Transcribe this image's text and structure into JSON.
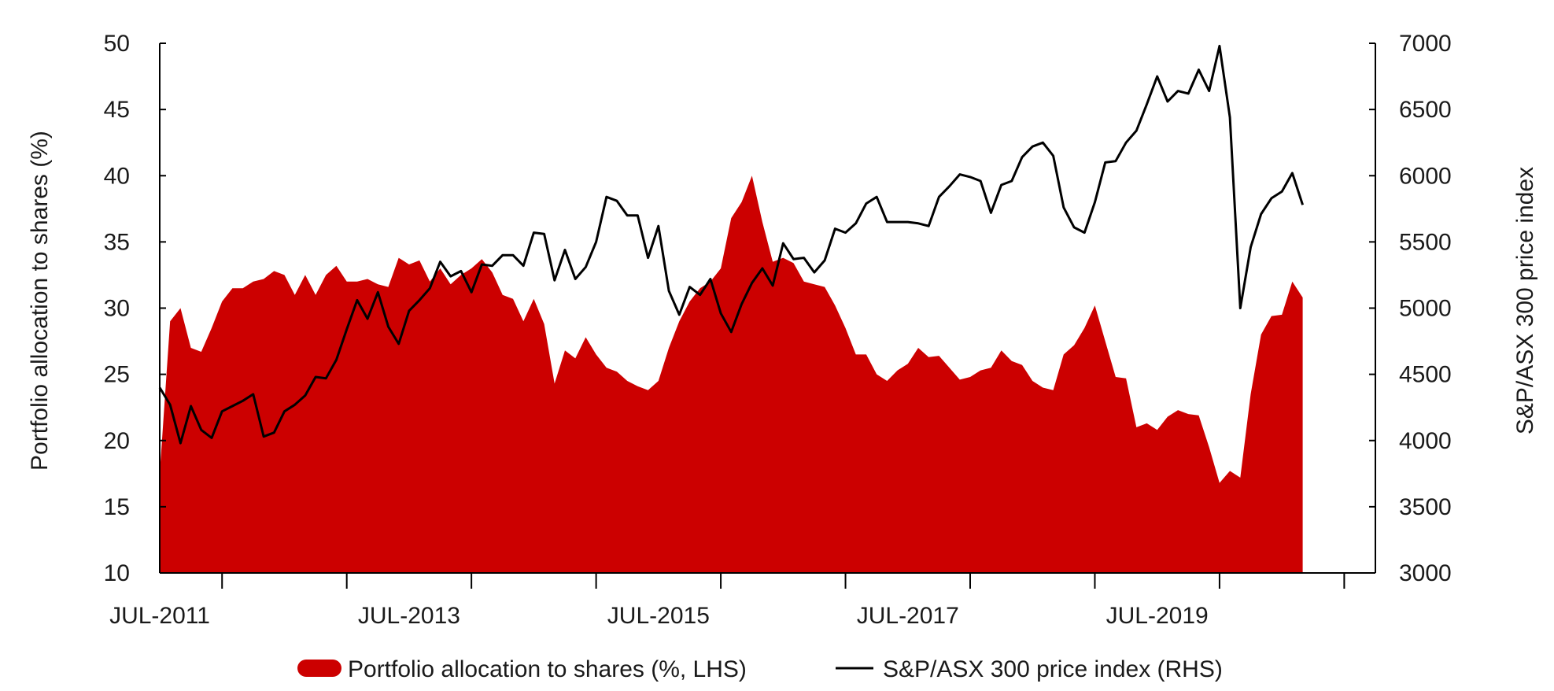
{
  "chart_data": {
    "type": "area+line",
    "title": "",
    "left_axis": {
      "label": "Portfolio allocation to shares (%)",
      "min": 10,
      "max": 50,
      "ticks": [
        "10",
        "15",
        "20",
        "25",
        "30",
        "35",
        "40",
        "45",
        "50"
      ]
    },
    "right_axis": {
      "label": "S&P/ASX 300 price index",
      "min": 3000,
      "max": 7000,
      "ticks": [
        "3000",
        "3500",
        "4000",
        "4500",
        "5000",
        "5500",
        "6000",
        "6500",
        "7000"
      ]
    },
    "x_axis": {
      "start": "2011-07",
      "end": "2021-04",
      "tick_labels": [
        "JUL-2011",
        "JUL-2013",
        "JUL-2015",
        "JUL-2017",
        "JUL-2019"
      ]
    },
    "legend": {
      "placement": "bottom-center"
    },
    "colors": {
      "allocation": "#cc0000",
      "index": "#000000"
    },
    "series": [
      {
        "name": "Portfolio allocation to shares (%, LHS)",
        "axis": "left",
        "style": "area",
        "points": [
          [
            "2011-07",
            17.5
          ],
          [
            "2011-08",
            29.0
          ],
          [
            "2011-09",
            30.0
          ],
          [
            "2011-10",
            27.0
          ],
          [
            "2011-11",
            26.7
          ],
          [
            "2011-12",
            28.5
          ],
          [
            "2012-01",
            30.5
          ],
          [
            "2012-02",
            31.5
          ],
          [
            "2012-03",
            31.5
          ],
          [
            "2012-04",
            32.0
          ],
          [
            "2012-05",
            32.2
          ],
          [
            "2012-06",
            32.8
          ],
          [
            "2012-07",
            32.5
          ],
          [
            "2012-08",
            31.0
          ],
          [
            "2012-09",
            32.5
          ],
          [
            "2012-10",
            31.0
          ],
          [
            "2012-11",
            32.5
          ],
          [
            "2012-12",
            33.2
          ],
          [
            "2013-01",
            32.0
          ],
          [
            "2013-02",
            32.0
          ],
          [
            "2013-03",
            32.2
          ],
          [
            "2013-04",
            31.8
          ],
          [
            "2013-05",
            31.6
          ],
          [
            "2013-06",
            33.8
          ],
          [
            "2013-07",
            33.3
          ],
          [
            "2013-08",
            33.6
          ],
          [
            "2013-09",
            32.0
          ],
          [
            "2013-10",
            33.0
          ],
          [
            "2013-11",
            31.8
          ],
          [
            "2013-12",
            32.5
          ],
          [
            "2014-01",
            33.0
          ],
          [
            "2014-02",
            33.7
          ],
          [
            "2014-03",
            32.7
          ],
          [
            "2014-04",
            31.0
          ],
          [
            "2014-05",
            30.7
          ],
          [
            "2014-06",
            29.0
          ],
          [
            "2014-07",
            30.7
          ],
          [
            "2014-08",
            28.8
          ],
          [
            "2014-09",
            24.3
          ],
          [
            "2014-10",
            26.8
          ],
          [
            "2014-11",
            26.2
          ],
          [
            "2014-12",
            27.8
          ],
          [
            "2015-01",
            26.5
          ],
          [
            "2015-02",
            25.5
          ],
          [
            "2015-03",
            25.2
          ],
          [
            "2015-04",
            24.5
          ],
          [
            "2015-05",
            24.1
          ],
          [
            "2015-06",
            23.8
          ],
          [
            "2015-07",
            24.5
          ],
          [
            "2015-08",
            27.0
          ],
          [
            "2015-09",
            29.0
          ],
          [
            "2015-10",
            30.5
          ],
          [
            "2015-11",
            31.5
          ],
          [
            "2015-12",
            32.0
          ],
          [
            "2016-01",
            33.0
          ],
          [
            "2016-02",
            36.8
          ],
          [
            "2016-03",
            38.0
          ],
          [
            "2016-04",
            40.0
          ],
          [
            "2016-05",
            36.5
          ],
          [
            "2016-06",
            33.5
          ],
          [
            "2016-07",
            33.8
          ],
          [
            "2016-08",
            33.4
          ],
          [
            "2016-09",
            32.0
          ],
          [
            "2016-10",
            31.8
          ],
          [
            "2016-11",
            31.6
          ],
          [
            "2016-12",
            30.2
          ],
          [
            "2017-01",
            28.5
          ],
          [
            "2017-02",
            26.5
          ],
          [
            "2017-03",
            26.5
          ],
          [
            "2017-04",
            25.0
          ],
          [
            "2017-05",
            24.5
          ],
          [
            "2017-06",
            25.3
          ],
          [
            "2017-07",
            25.8
          ],
          [
            "2017-08",
            27.0
          ],
          [
            "2017-09",
            26.3
          ],
          [
            "2017-10",
            26.4
          ],
          [
            "2017-11",
            25.5
          ],
          [
            "2017-12",
            24.6
          ],
          [
            "2018-01",
            24.8
          ],
          [
            "2018-02",
            25.3
          ],
          [
            "2018-03",
            25.5
          ],
          [
            "2018-04",
            26.8
          ],
          [
            "2018-05",
            26.0
          ],
          [
            "2018-06",
            25.7
          ],
          [
            "2018-07",
            24.5
          ],
          [
            "2018-08",
            24.0
          ],
          [
            "2018-09",
            23.8
          ],
          [
            "2018-10",
            26.5
          ],
          [
            "2018-11",
            27.2
          ],
          [
            "2018-12",
            28.5
          ],
          [
            "2019-01",
            30.2
          ],
          [
            "2019-02",
            27.5
          ],
          [
            "2019-03",
            24.8
          ],
          [
            "2019-04",
            24.7
          ],
          [
            "2019-05",
            21.0
          ],
          [
            "2019-06",
            21.3
          ],
          [
            "2019-07",
            20.8
          ],
          [
            "2019-08",
            21.8
          ],
          [
            "2019-09",
            22.3
          ],
          [
            "2019-10",
            22.0
          ],
          [
            "2019-11",
            21.9
          ],
          [
            "2019-12",
            19.5
          ],
          [
            "2020-01",
            16.8
          ],
          [
            "2020-02",
            17.7
          ],
          [
            "2020-03",
            17.2
          ],
          [
            "2020-04",
            23.5
          ],
          [
            "2020-05",
            28.0
          ],
          [
            "2020-06",
            29.4
          ],
          [
            "2020-07",
            29.5
          ],
          [
            "2020-08",
            32.0
          ],
          [
            "2020-09",
            30.8
          ]
        ]
      },
      {
        "name": "S&P/ASX 300 price index (RHS)",
        "axis": "right",
        "style": "line",
        "points": [
          [
            "2011-07",
            4400
          ],
          [
            "2011-08",
            4270
          ],
          [
            "2011-09",
            3980
          ],
          [
            "2011-10",
            4260
          ],
          [
            "2011-11",
            4080
          ],
          [
            "2011-12",
            4020
          ],
          [
            "2012-01",
            4220
          ],
          [
            "2012-02",
            4260
          ],
          [
            "2012-03",
            4300
          ],
          [
            "2012-04",
            4350
          ],
          [
            "2012-05",
            4030
          ],
          [
            "2012-06",
            4060
          ],
          [
            "2012-07",
            4220
          ],
          [
            "2012-08",
            4270
          ],
          [
            "2012-09",
            4340
          ],
          [
            "2012-10",
            4480
          ],
          [
            "2012-11",
            4470
          ],
          [
            "2012-12",
            4610
          ],
          [
            "2013-01",
            4840
          ],
          [
            "2013-02",
            5060
          ],
          [
            "2013-03",
            4920
          ],
          [
            "2013-04",
            5120
          ],
          [
            "2013-05",
            4860
          ],
          [
            "2013-06",
            4730
          ],
          [
            "2013-07",
            4980
          ],
          [
            "2013-08",
            5060
          ],
          [
            "2013-09",
            5150
          ],
          [
            "2013-10",
            5350
          ],
          [
            "2013-11",
            5240
          ],
          [
            "2013-12",
            5280
          ],
          [
            "2014-01",
            5120
          ],
          [
            "2014-02",
            5330
          ],
          [
            "2014-03",
            5320
          ],
          [
            "2014-04",
            5400
          ],
          [
            "2014-05",
            5400
          ],
          [
            "2014-06",
            5320
          ],
          [
            "2014-07",
            5570
          ],
          [
            "2014-08",
            5560
          ],
          [
            "2014-09",
            5210
          ],
          [
            "2014-10",
            5440
          ],
          [
            "2014-11",
            5220
          ],
          [
            "2014-12",
            5310
          ],
          [
            "2015-01",
            5500
          ],
          [
            "2015-02",
            5840
          ],
          [
            "2015-03",
            5810
          ],
          [
            "2015-04",
            5700
          ],
          [
            "2015-05",
            5700
          ],
          [
            "2015-06",
            5380
          ],
          [
            "2015-07",
            5620
          ],
          [
            "2015-08",
            5130
          ],
          [
            "2015-09",
            4950
          ],
          [
            "2015-10",
            5160
          ],
          [
            "2015-11",
            5100
          ],
          [
            "2015-12",
            5220
          ],
          [
            "2016-01",
            4960
          ],
          [
            "2016-02",
            4820
          ],
          [
            "2016-03",
            5030
          ],
          [
            "2016-04",
            5190
          ],
          [
            "2016-05",
            5300
          ],
          [
            "2016-06",
            5170
          ],
          [
            "2016-07",
            5490
          ],
          [
            "2016-08",
            5370
          ],
          [
            "2016-09",
            5380
          ],
          [
            "2016-10",
            5270
          ],
          [
            "2016-11",
            5360
          ],
          [
            "2016-12",
            5600
          ],
          [
            "2017-01",
            5570
          ],
          [
            "2017-02",
            5640
          ],
          [
            "2017-03",
            5790
          ],
          [
            "2017-04",
            5840
          ],
          [
            "2017-05",
            5650
          ],
          [
            "2017-06",
            5650
          ],
          [
            "2017-07",
            5650
          ],
          [
            "2017-08",
            5640
          ],
          [
            "2017-09",
            5620
          ],
          [
            "2017-10",
            5840
          ],
          [
            "2017-11",
            5920
          ],
          [
            "2017-12",
            6010
          ],
          [
            "2018-01",
            5990
          ],
          [
            "2018-02",
            5960
          ],
          [
            "2018-03",
            5720
          ],
          [
            "2018-04",
            5930
          ],
          [
            "2018-05",
            5960
          ],
          [
            "2018-06",
            6140
          ],
          [
            "2018-07",
            6220
          ],
          [
            "2018-08",
            6250
          ],
          [
            "2018-09",
            6150
          ],
          [
            "2018-10",
            5760
          ],
          [
            "2018-11",
            5610
          ],
          [
            "2018-12",
            5570
          ],
          [
            "2019-01",
            5800
          ],
          [
            "2019-02",
            6100
          ],
          [
            "2019-03",
            6110
          ],
          [
            "2019-04",
            6250
          ],
          [
            "2019-05",
            6340
          ],
          [
            "2019-06",
            6540
          ],
          [
            "2019-07",
            6750
          ],
          [
            "2019-08",
            6560
          ],
          [
            "2019-09",
            6640
          ],
          [
            "2019-10",
            6620
          ],
          [
            "2019-11",
            6800
          ],
          [
            "2019-12",
            6640
          ],
          [
            "2020-01",
            6980
          ],
          [
            "2020-02",
            6440
          ],
          [
            "2020-03",
            5000
          ],
          [
            "2020-04",
            5460
          ],
          [
            "2020-05",
            5710
          ],
          [
            "2020-06",
            5830
          ],
          [
            "2020-07",
            5880
          ],
          [
            "2020-08",
            6020
          ],
          [
            "2020-09",
            5780
          ]
        ]
      }
    ]
  }
}
